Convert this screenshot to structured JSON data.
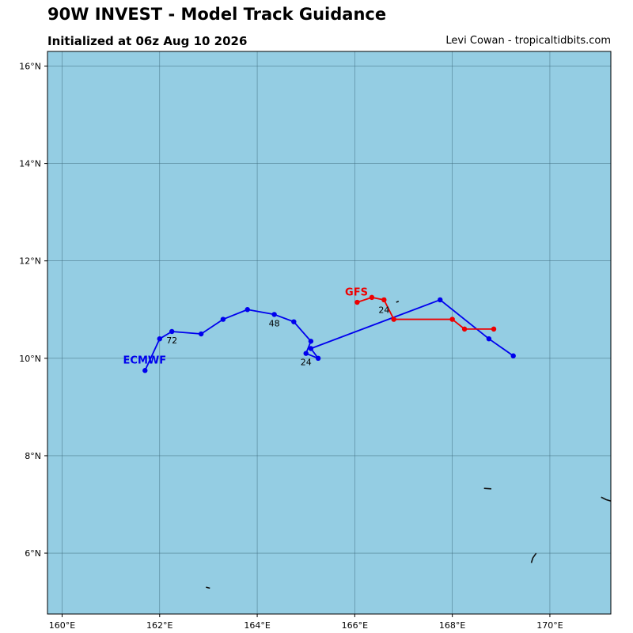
{
  "header": {
    "title": "90W INVEST - Model Track Guidance",
    "subtitle": "Initialized at 06z Aug 10 2026",
    "credit": "Levi Cowan - tropicaltidbits.com"
  },
  "map": {
    "ocean_color": "#94cde3",
    "land_color": "#a0a0a0",
    "grid_color": "#3e6b7e",
    "lon_range": [
      159.7,
      171.25
    ],
    "lat_range": [
      4.75,
      16.3
    ],
    "lon_ticks": [
      160,
      162,
      164,
      166,
      168,
      170
    ],
    "lat_ticks": [
      6,
      8,
      10,
      12,
      14,
      16
    ],
    "lon_tick_labels": [
      "160°E",
      "162°E",
      "164°E",
      "166°E",
      "168°E",
      "170°E"
    ],
    "lat_tick_labels": [
      "6°N",
      "8°N",
      "10°N",
      "12°N",
      "14°N",
      "16°N"
    ]
  },
  "chart_data": {
    "type": "line",
    "series": [
      {
        "name": "ECMWF",
        "color": "#0000ee",
        "points": [
          [
            169.25,
            10.05
          ],
          [
            168.75,
            10.4
          ],
          [
            167.75,
            11.2
          ],
          [
            165.1,
            10.2
          ],
          [
            165.25,
            10.0
          ],
          [
            165.0,
            10.1
          ],
          [
            165.1,
            10.35
          ],
          [
            164.75,
            10.75
          ],
          [
            164.35,
            10.9
          ],
          [
            163.8,
            11.0
          ],
          [
            163.3,
            10.8
          ],
          [
            162.85,
            10.5
          ],
          [
            162.25,
            10.55
          ],
          [
            162.0,
            10.4
          ],
          [
            161.7,
            9.75
          ]
        ],
        "hour_labels": [
          {
            "text": "24",
            "lon": 165.0,
            "lat": 9.92
          },
          {
            "text": "48",
            "lon": 164.35,
            "lat": 10.72
          },
          {
            "text": "72",
            "lon": 162.25,
            "lat": 10.37
          }
        ],
        "label": {
          "text": "ECMWF",
          "lon": 161.25,
          "lat": 9.97
        }
      },
      {
        "name": "GFS",
        "color": "#ee0000",
        "points": [
          [
            168.85,
            10.6
          ],
          [
            168.25,
            10.6
          ],
          [
            168.0,
            10.8
          ],
          [
            166.8,
            10.8
          ],
          [
            166.6,
            11.2
          ],
          [
            166.35,
            11.25
          ],
          [
            166.05,
            11.15
          ]
        ],
        "hour_labels": [
          {
            "text": "24",
            "lon": 166.6,
            "lat": 11.0
          }
        ],
        "label": {
          "text": "GFS",
          "lon": 165.8,
          "lat": 11.37
        }
      }
    ],
    "islands": [
      [
        [
          166.85,
          11.15
        ],
        [
          166.9,
          11.17
        ]
      ],
      [
        [
          168.65,
          7.33
        ],
        [
          168.8,
          7.32
        ]
      ],
      [
        [
          171.05,
          7.15
        ],
        [
          171.15,
          7.1
        ],
        [
          171.25,
          7.07
        ]
      ],
      [
        [
          169.62,
          5.8
        ],
        [
          169.65,
          5.9
        ],
        [
          169.72,
          6.0
        ]
      ],
      [
        [
          162.95,
          5.3
        ],
        [
          163.03,
          5.28
        ]
      ]
    ]
  }
}
